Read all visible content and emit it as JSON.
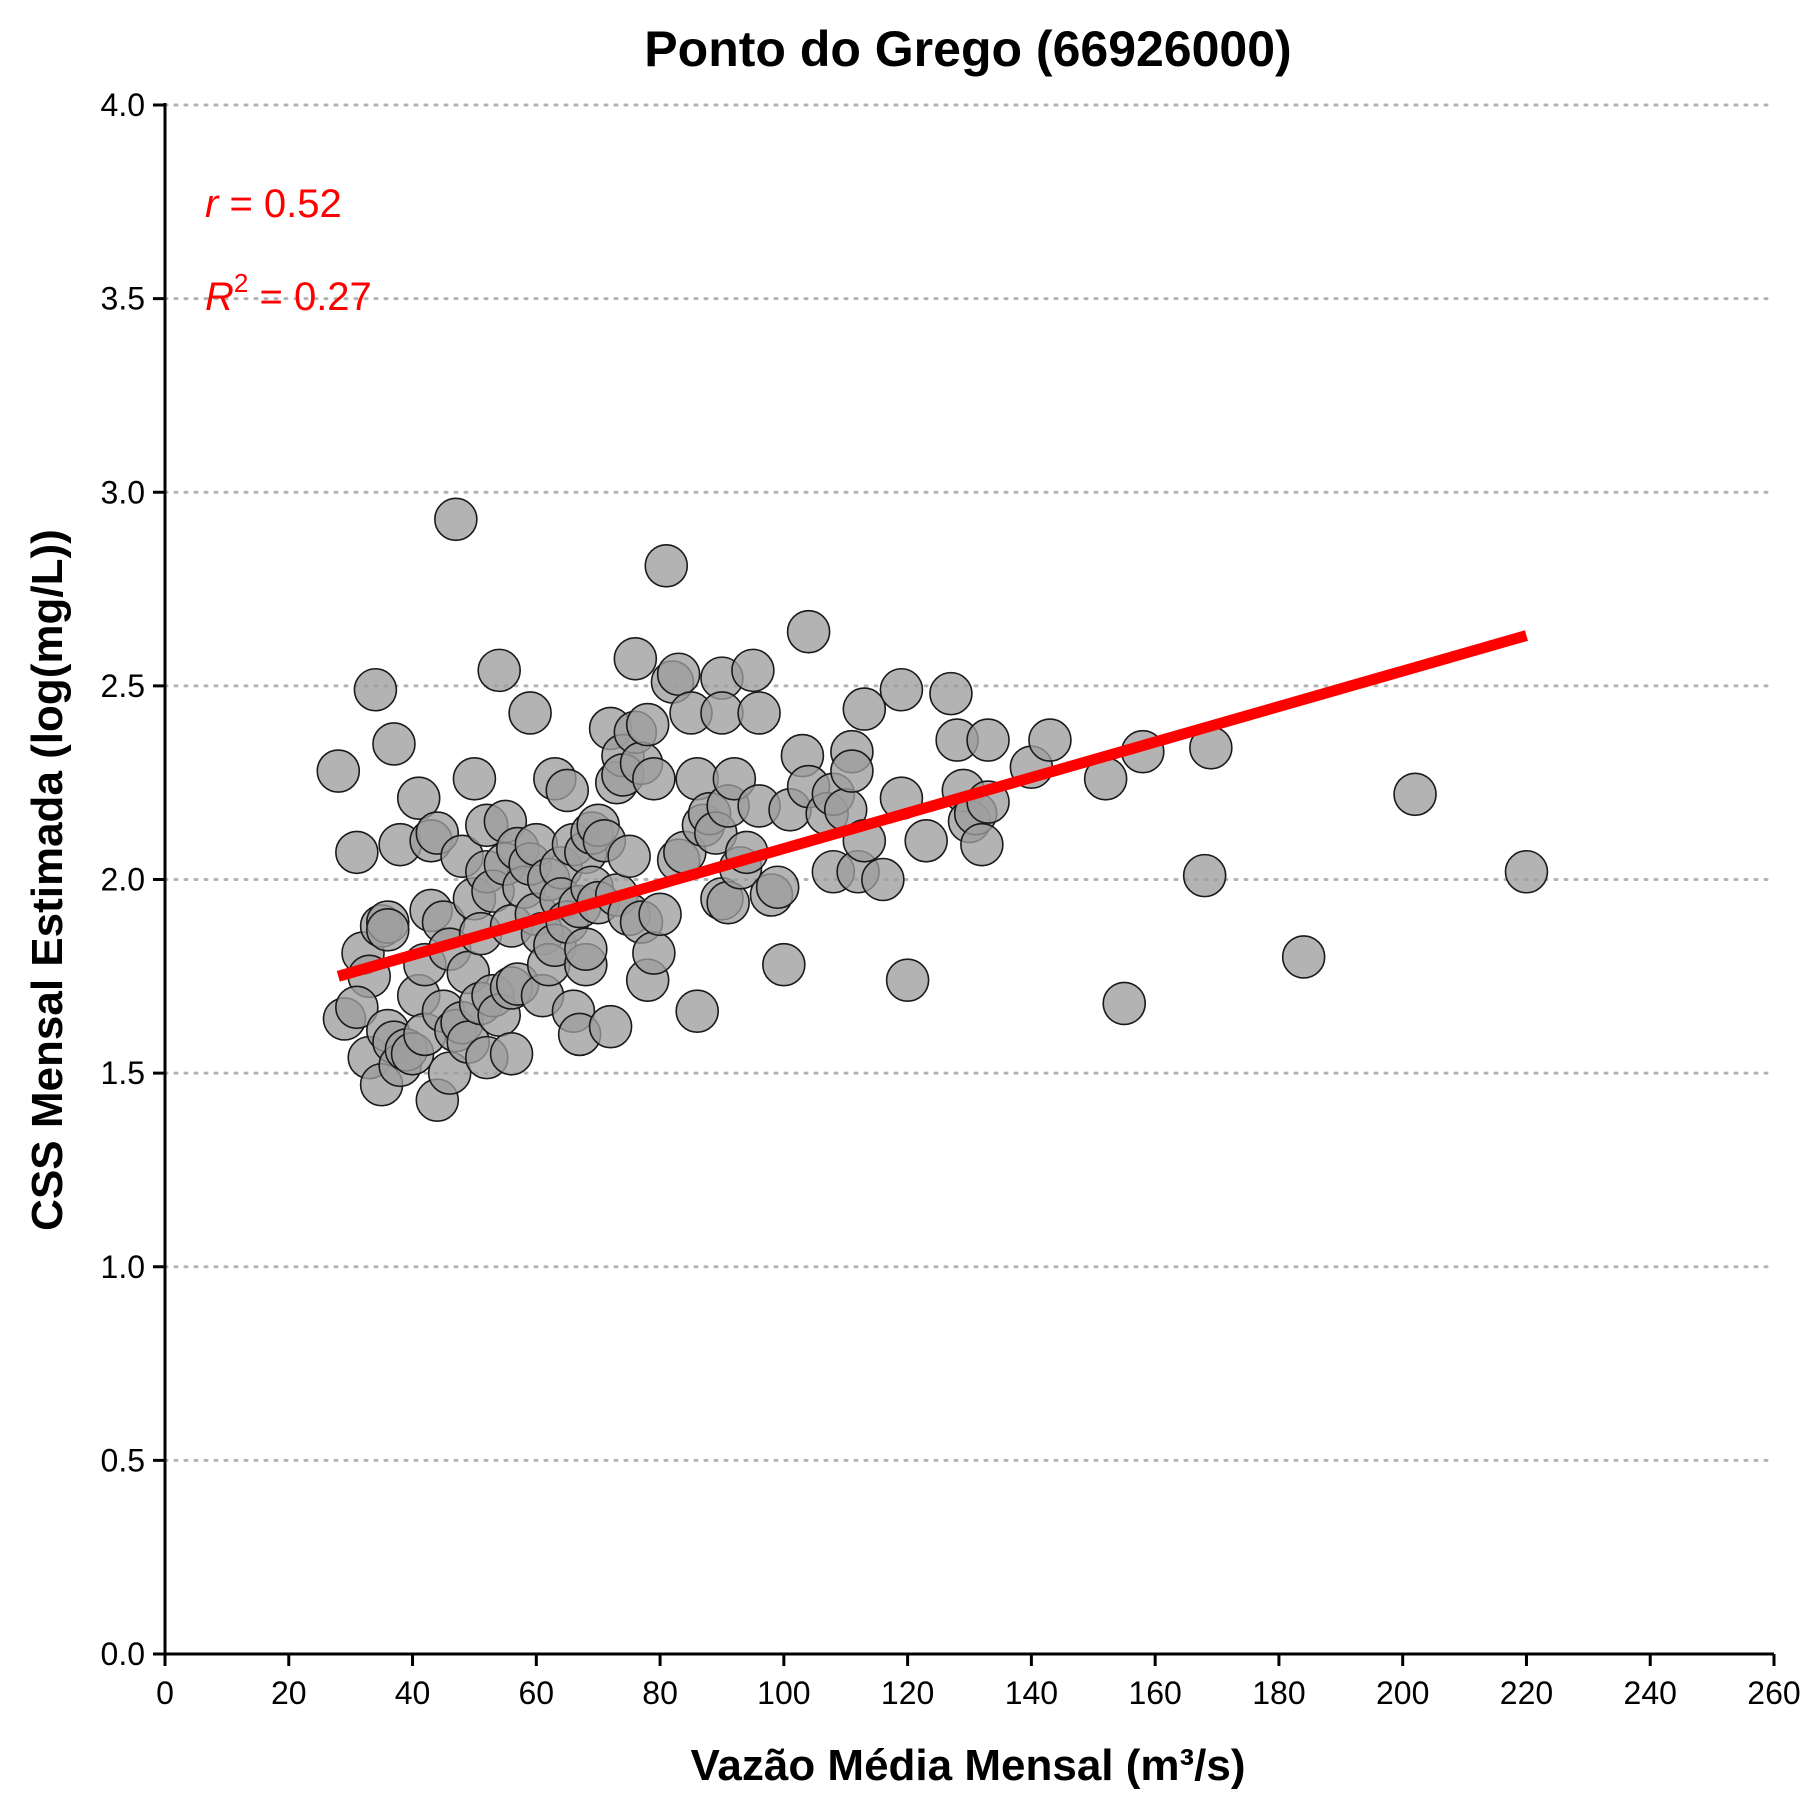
{
  "chart_data": {
    "type": "scatter",
    "title": "Ponto do Grego (66926000)",
    "xlabel": "Vazão Média Mensal (m³/s)",
    "ylabel": "CSS Mensal Estimada (log(mg/L))",
    "xlim": [
      0,
      260
    ],
    "ylim": [
      0,
      4
    ],
    "x_ticks": [
      0,
      20,
      40,
      60,
      80,
      100,
      120,
      140,
      160,
      180,
      200,
      220,
      240,
      260
    ],
    "y_ticks": [
      0.0,
      0.5,
      1.0,
      1.5,
      2.0,
      2.5,
      3.0,
      3.5,
      4.0
    ],
    "x_tick_labels": [
      "0",
      "20",
      "40",
      "60",
      "80",
      "100",
      "120",
      "140",
      "160",
      "180",
      "200",
      "220",
      "240",
      "260"
    ],
    "y_tick_labels": [
      "0.0",
      "0.5",
      "1.0",
      "1.5",
      "2.0",
      "2.5",
      "3.0",
      "3.5",
      "4.0"
    ],
    "grid": "horizontal-dotted",
    "colors": {
      "points_fill": "#9e9e9e",
      "points_stroke": "#1a1a1a",
      "trend": "#ff0000",
      "annotation": "#ff0000"
    },
    "annotations": {
      "r_symbol": "r",
      "r_value": " = 0.52",
      "r2_symbol": "R",
      "r2_sup": "2",
      "r2_value": " = 0.27"
    },
    "trend_line": {
      "x": [
        28,
        220
      ],
      "y": [
        1.75,
        2.63
      ]
    },
    "series": [
      {
        "points": [
          [
            28,
            2.28
          ],
          [
            31,
            2.07
          ],
          [
            29,
            1.64
          ],
          [
            32,
            1.81
          ],
          [
            33,
            1.75
          ],
          [
            31,
            1.67
          ],
          [
            34,
            2.49
          ],
          [
            33,
            1.54
          ],
          [
            35,
            1.88
          ],
          [
            36,
            1.89
          ],
          [
            36,
            1.87
          ],
          [
            37,
            2.35
          ],
          [
            38,
            2.09
          ],
          [
            35,
            1.47
          ],
          [
            36,
            1.61
          ],
          [
            37,
            1.58
          ],
          [
            38,
            1.52
          ],
          [
            39,
            1.56
          ],
          [
            40,
            1.55
          ],
          [
            41,
            2.21
          ],
          [
            41,
            1.7
          ],
          [
            42,
            1.6
          ],
          [
            42,
            1.78
          ],
          [
            43,
            1.92
          ],
          [
            43,
            2.1
          ],
          [
            44,
            2.12
          ],
          [
            44,
            1.43
          ],
          [
            45,
            1.89
          ],
          [
            45,
            1.66
          ],
          [
            46,
            1.82
          ],
          [
            46,
            1.5
          ],
          [
            47,
            2.93
          ],
          [
            47,
            1.61
          ],
          [
            48,
            1.63
          ],
          [
            48,
            2.06
          ],
          [
            49,
            1.76
          ],
          [
            49,
            1.58
          ],
          [
            50,
            1.95
          ],
          [
            50,
            2.26
          ],
          [
            51,
            1.86
          ],
          [
            51,
            1.68
          ],
          [
            52,
            2.02
          ],
          [
            52,
            2.14
          ],
          [
            52,
            1.54
          ],
          [
            53,
            1.7
          ],
          [
            53,
            1.97
          ],
          [
            54,
            2.54
          ],
          [
            54,
            1.65
          ],
          [
            55,
            2.15
          ],
          [
            55,
            2.04
          ],
          [
            56,
            1.88
          ],
          [
            56,
            1.72
          ],
          [
            56,
            1.55
          ],
          [
            57,
            2.08
          ],
          [
            57,
            1.73
          ],
          [
            58,
            1.98
          ],
          [
            59,
            2.43
          ],
          [
            59,
            2.04
          ],
          [
            60,
            2.09
          ],
          [
            60,
            1.91
          ],
          [
            61,
            1.86
          ],
          [
            61,
            1.7
          ],
          [
            62,
            2.0
          ],
          [
            62,
            1.78
          ],
          [
            63,
            2.26
          ],
          [
            63,
            1.83
          ],
          [
            64,
            2.03
          ],
          [
            64,
            1.95
          ],
          [
            65,
            2.23
          ],
          [
            65,
            1.89
          ],
          [
            66,
            2.09
          ],
          [
            66,
            1.66
          ],
          [
            67,
            1.93
          ],
          [
            67,
            1.6
          ],
          [
            68,
            1.78
          ],
          [
            68,
            2.07
          ],
          [
            68,
            1.82
          ],
          [
            69,
            2.12
          ],
          [
            69,
            1.98
          ],
          [
            70,
            2.14
          ],
          [
            70,
            1.94
          ],
          [
            71,
            2.1
          ],
          [
            72,
            2.39
          ],
          [
            72,
            1.62
          ],
          [
            73,
            2.25
          ],
          [
            73,
            1.96
          ],
          [
            74,
            2.32
          ],
          [
            74,
            2.27
          ],
          [
            75,
            2.06
          ],
          [
            75,
            1.91
          ],
          [
            76,
            2.57
          ],
          [
            76,
            2.38
          ],
          [
            77,
            2.3
          ],
          [
            77,
            1.89
          ],
          [
            78,
            1.74
          ],
          [
            78,
            2.4
          ],
          [
            79,
            1.81
          ],
          [
            79,
            2.26
          ],
          [
            80,
            1.91
          ],
          [
            81,
            2.81
          ],
          [
            82,
            2.51
          ],
          [
            83,
            2.53
          ],
          [
            83,
            2.05
          ],
          [
            84,
            2.07
          ],
          [
            85,
            2.43
          ],
          [
            86,
            2.26
          ],
          [
            86,
            1.66
          ],
          [
            87,
            2.14
          ],
          [
            88,
            2.17
          ],
          [
            89,
            2.12
          ],
          [
            90,
            2.52
          ],
          [
            90,
            2.43
          ],
          [
            90,
            1.95
          ],
          [
            91,
            2.19
          ],
          [
            91,
            1.94
          ],
          [
            92,
            2.26
          ],
          [
            93,
            2.03
          ],
          [
            94,
            2.07
          ],
          [
            95,
            2.54
          ],
          [
            96,
            2.43
          ],
          [
            96,
            2.19
          ],
          [
            98,
            1.96
          ],
          [
            99,
            1.98
          ],
          [
            100,
            1.78
          ],
          [
            101,
            2.18
          ],
          [
            103,
            2.32
          ],
          [
            104,
            2.64
          ],
          [
            104,
            2.24
          ],
          [
            107,
            2.17
          ],
          [
            108,
            2.22
          ],
          [
            108,
            2.02
          ],
          [
            110,
            2.18
          ],
          [
            111,
            2.33
          ],
          [
            111,
            2.28
          ],
          [
            112,
            2.02
          ],
          [
            113,
            2.44
          ],
          [
            113,
            2.1
          ],
          [
            116,
            2.0
          ],
          [
            119,
            2.49
          ],
          [
            119,
            2.21
          ],
          [
            120,
            1.74
          ],
          [
            123,
            2.1
          ],
          [
            127,
            2.48
          ],
          [
            128,
            2.36
          ],
          [
            129,
            2.23
          ],
          [
            130,
            2.15
          ],
          [
            131,
            2.17
          ],
          [
            132,
            2.09
          ],
          [
            133,
            2.36
          ],
          [
            133,
            2.2
          ],
          [
            140,
            2.29
          ],
          [
            143,
            2.36
          ],
          [
            152,
            2.26
          ],
          [
            155,
            1.68
          ],
          [
            158,
            2.33
          ],
          [
            168,
            2.01
          ],
          [
            169,
            2.34
          ],
          [
            184,
            1.8
          ],
          [
            202,
            2.22
          ],
          [
            220,
            2.02
          ]
        ]
      }
    ]
  }
}
